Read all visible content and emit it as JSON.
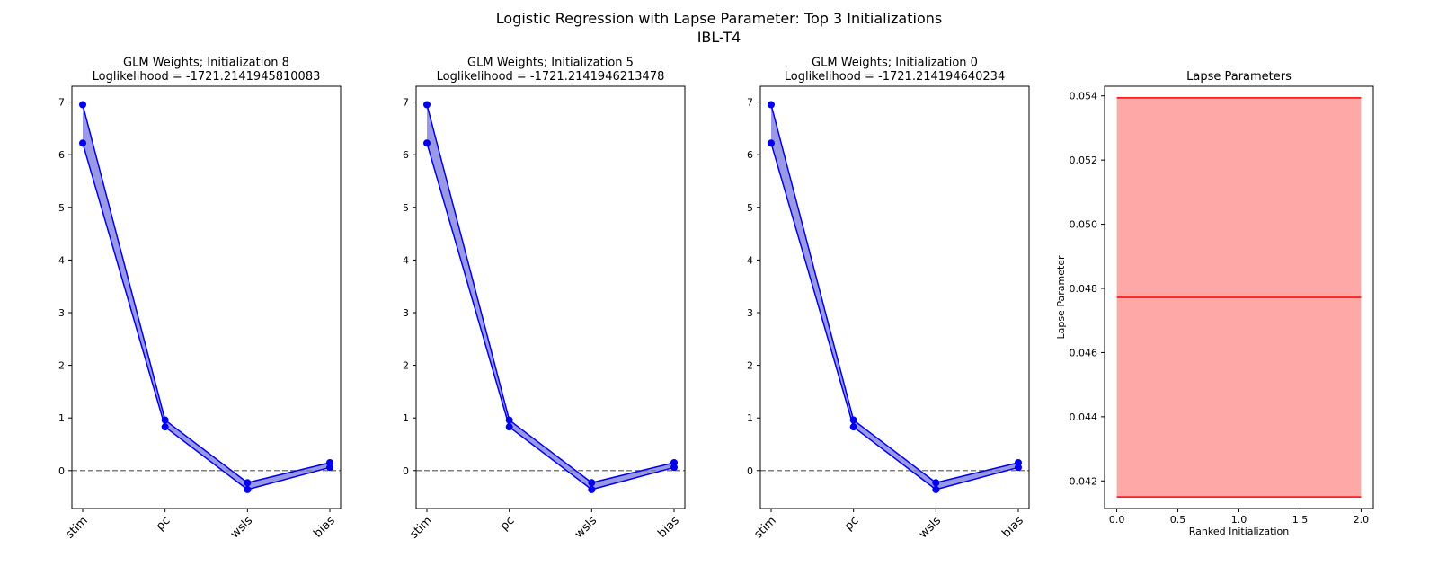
{
  "figure": {
    "title": "Logistic Regression with Lapse Parameter: Top 3 Initializations",
    "subtitle": "IBL-T4"
  },
  "colors": {
    "weights_line": "#0000ee",
    "weights_fill": "#9999e6",
    "lapse_line": "#ff0000",
    "lapse_fill": "#ffa8a8",
    "zero_line": "#808080"
  },
  "chart_data": [
    {
      "type": "line",
      "title": "GLM Weights; Initialization 8",
      "subtitle": "Loglikelihood = -1721.2141945810083",
      "categories": [
        "stim",
        "pc",
        "wsls",
        "bias"
      ],
      "series": [
        {
          "values": [
            6.95,
            0.96,
            -0.23,
            0.15
          ]
        },
        {
          "values": [
            6.22,
            0.83,
            -0.36,
            0.06
          ]
        }
      ],
      "ylim": [
        -0.72,
        7.3
      ],
      "yticks": [
        0,
        1,
        2,
        3,
        4,
        5,
        6,
        7
      ],
      "reference_line": 0,
      "grid": false
    },
    {
      "type": "line",
      "title": "GLM Weights; Initialization 5",
      "subtitle": "Loglikelihood = -1721.2141946213478",
      "categories": [
        "stim",
        "pc",
        "wsls",
        "bias"
      ],
      "series": [
        {
          "values": [
            6.95,
            0.96,
            -0.23,
            0.15
          ]
        },
        {
          "values": [
            6.22,
            0.83,
            -0.36,
            0.06
          ]
        }
      ],
      "ylim": [
        -0.72,
        7.3
      ],
      "yticks": [
        0,
        1,
        2,
        3,
        4,
        5,
        6,
        7
      ],
      "reference_line": 0,
      "grid": false
    },
    {
      "type": "line",
      "title": "GLM Weights; Initialization 0",
      "subtitle": "Loglikelihood = -1721.214194640234",
      "categories": [
        "stim",
        "pc",
        "wsls",
        "bias"
      ],
      "series": [
        {
          "values": [
            6.95,
            0.96,
            -0.23,
            0.15
          ]
        },
        {
          "values": [
            6.22,
            0.83,
            -0.36,
            0.06
          ]
        }
      ],
      "ylim": [
        -0.72,
        7.3
      ],
      "yticks": [
        0,
        1,
        2,
        3,
        4,
        5,
        6,
        7
      ],
      "reference_line": 0,
      "grid": false
    },
    {
      "type": "area",
      "title": "Lapse Parameters",
      "xlabel": "Ranked Initialization",
      "ylabel": "Lapse Parameter",
      "x": [
        0.0,
        2.0
      ],
      "series": [
        {
          "values": [
            0.05394,
            0.05394
          ]
        },
        {
          "values": [
            0.04772,
            0.04772
          ]
        },
        {
          "values": [
            0.0415,
            0.0415
          ]
        }
      ],
      "xlim": [
        -0.1,
        2.1
      ],
      "ylim": [
        0.04114,
        0.0543
      ],
      "xticks": [
        "0.0",
        "0.5",
        "1.0",
        "1.5",
        "2.0"
      ],
      "yticks": [
        "0.042",
        "0.044",
        "0.046",
        "0.048",
        "0.050",
        "0.052",
        "0.054"
      ],
      "grid": false
    }
  ]
}
